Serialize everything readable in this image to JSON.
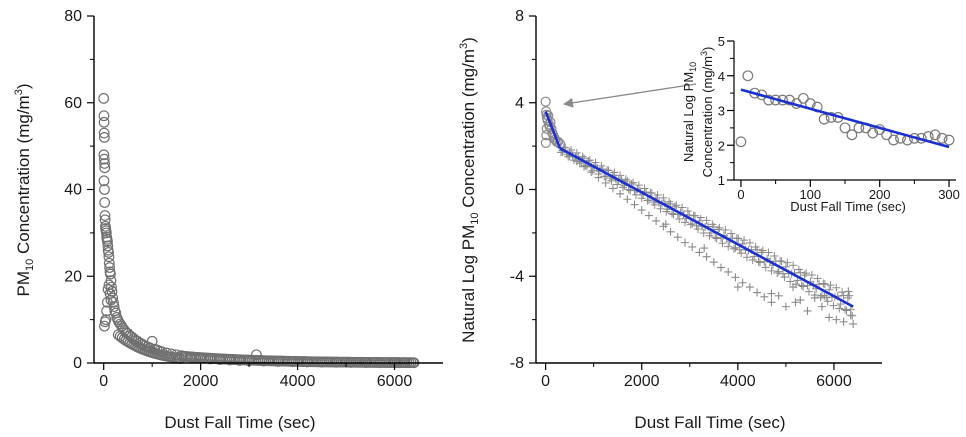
{
  "chart_data": [
    {
      "type": "scatter",
      "panel": "left",
      "xlabel": "Dust Fall Time (sec)",
      "ylabel_main": "PM",
      "ylabel_sub": "10",
      "ylabel_rest": " Concentration (mg/m",
      "ylabel_sup": "3",
      "ylabel_end": ")",
      "xlim": [
        -200,
        7000
      ],
      "ylim": [
        0,
        80
      ],
      "x_ticks": [
        0,
        2000,
        4000,
        6000
      ],
      "y_ticks": [
        0,
        20,
        40,
        60,
        80
      ],
      "x_tick_labels": [
        "0",
        "2000",
        "4000",
        "6000"
      ],
      "y_tick_labels": [
        "0",
        "20",
        "40",
        "60",
        "80"
      ],
      "marker_color": "#707070",
      "series": [
        {
          "points": [
            [
              0,
              61
            ],
            [
              5,
              57
            ],
            [
              8,
              55.5
            ],
            [
              10,
              53
            ],
            [
              14,
              52
            ],
            [
              3,
              48
            ],
            [
              12,
              47
            ],
            [
              18,
              46
            ],
            [
              22,
              45
            ],
            [
              6,
              42
            ],
            [
              16,
              40
            ],
            [
              20,
              37
            ],
            [
              26,
              34
            ],
            [
              30,
              33
            ],
            [
              35,
              31.5
            ],
            [
              40,
              31
            ],
            [
              48,
              30.5
            ],
            [
              55,
              30
            ],
            [
              62,
              29
            ],
            [
              70,
              28.5
            ],
            [
              78,
              28
            ],
            [
              85,
              27
            ],
            [
              92,
              26
            ],
            [
              100,
              25.5
            ],
            [
              108,
              24.5
            ],
            [
              115,
              23
            ],
            [
              122,
              22
            ],
            [
              130,
              21
            ],
            [
              140,
              20.5
            ],
            [
              150,
              19
            ],
            [
              160,
              17.5
            ],
            [
              172,
              16.5
            ],
            [
              185,
              15
            ],
            [
              200,
              14
            ],
            [
              215,
              13
            ],
            [
              230,
              12
            ],
            [
              250,
              11.5
            ],
            [
              270,
              10.5
            ],
            [
              290,
              10
            ],
            [
              15,
              8.5
            ],
            [
              30,
              9.5
            ],
            [
              45,
              10
            ],
            [
              60,
              12
            ],
            [
              75,
              14
            ],
            [
              90,
              17
            ],
            [
              110,
              18
            ],
            [
              130,
              16
            ],
            [
              150,
              14.5
            ],
            [
              310,
              9.5
            ],
            [
              340,
              9
            ],
            [
              370,
              8.5
            ],
            [
              400,
              8
            ],
            [
              430,
              7.5
            ],
            [
              460,
              7
            ],
            [
              500,
              6.8
            ],
            [
              540,
              6.3
            ],
            [
              580,
              6
            ],
            [
              620,
              5.6
            ],
            [
              660,
              5.2
            ],
            [
              700,
              5
            ],
            [
              750,
              4.6
            ],
            [
              800,
              4.3
            ],
            [
              850,
              4
            ],
            [
              900,
              3.7
            ],
            [
              950,
              3.5
            ],
            [
              1000,
              5
            ],
            [
              1050,
              3.2
            ],
            [
              1100,
              3
            ],
            [
              1150,
              2.8
            ],
            [
              1200,
              2.6
            ],
            [
              1300,
              2.3
            ],
            [
              1400,
              2.1
            ],
            [
              1500,
              1.9
            ],
            [
              1600,
              1.7
            ],
            [
              1700,
              1.5
            ],
            [
              1800,
              1.35
            ],
            [
              1900,
              1.2
            ],
            [
              2000,
              1.1
            ],
            [
              2200,
              0.95
            ],
            [
              2400,
              0.8
            ],
            [
              2600,
              0.7
            ],
            [
              2800,
              0.6
            ],
            [
              3000,
              0.5
            ],
            [
              3150,
              1.9
            ],
            [
              3300,
              0.45
            ],
            [
              3600,
              0.35
            ],
            [
              3900,
              0.3
            ],
            [
              4200,
              0.25
            ],
            [
              4500,
              0.2
            ],
            [
              4800,
              0.17
            ],
            [
              5100,
              0.14
            ],
            [
              5400,
              0.12
            ],
            [
              5700,
              0.1
            ],
            [
              6000,
              0.08
            ],
            [
              6200,
              0.07
            ],
            [
              6400,
              0.06
            ]
          ]
        }
      ]
    },
    {
      "type": "scatter",
      "panel": "right",
      "xlabel": "Dust Fall Time (sec)",
      "ylabel_main": "Natural Log PM",
      "ylabel_sub": "10",
      "ylabel_rest": " Concentration (mg/m",
      "ylabel_sup": "3",
      "ylabel_end": ")",
      "xlim": [
        -200,
        7000
      ],
      "ylim": [
        -8,
        8
      ],
      "x_ticks": [
        0,
        2000,
        4000,
        6000
      ],
      "y_ticks": [
        -8,
        -4,
        0,
        4,
        8
      ],
      "x_tick_labels": [
        "0",
        "2000",
        "4000",
        "6000"
      ],
      "y_tick_labels": [
        "-8",
        "-4",
        "0",
        "4",
        "8"
      ],
      "marker_color": "#8a8a8a",
      "line_color": "#1a2fd6",
      "circle_points": [
        [
          0,
          4.05
        ],
        [
          10,
          3.6
        ],
        [
          20,
          3.45
        ],
        [
          30,
          3.3
        ],
        [
          40,
          3.2
        ],
        [
          55,
          3.4
        ],
        [
          70,
          3.0
        ],
        [
          85,
          2.9
        ],
        [
          100,
          3.1
        ],
        [
          120,
          2.8
        ],
        [
          140,
          2.6
        ],
        [
          160,
          2.5
        ],
        [
          180,
          2.4
        ],
        [
          200,
          2.3
        ],
        [
          230,
          2.2
        ],
        [
          260,
          2.2
        ],
        [
          300,
          2.1
        ],
        [
          5,
          2.15
        ],
        [
          15,
          2.5
        ],
        [
          25,
          2.8
        ]
      ],
      "plus_points": [
        [
          350,
          1.8
        ],
        [
          500,
          1.55
        ],
        [
          650,
          1.3
        ],
        [
          800,
          1.05
        ],
        [
          950,
          0.8
        ],
        [
          1100,
          0.55
        ],
        [
          1250,
          0.3
        ],
        [
          1400,
          0.05
        ],
        [
          1550,
          -0.2
        ],
        [
          1700,
          -0.45
        ],
        [
          1850,
          -0.7
        ],
        [
          2000,
          -0.95
        ],
        [
          2150,
          -1.2
        ],
        [
          2300,
          -1.45
        ],
        [
          2450,
          -1.7
        ],
        [
          2600,
          -1.95
        ],
        [
          2750,
          -2.2
        ],
        [
          2900,
          -2.45
        ],
        [
          3050,
          -2.65
        ],
        [
          3200,
          -2.9
        ],
        [
          3350,
          -3.1
        ],
        [
          3500,
          -3.35
        ],
        [
          3650,
          -3.6
        ],
        [
          3800,
          -3.8
        ],
        [
          3950,
          -4.05
        ],
        [
          4100,
          -4.3
        ],
        [
          4250,
          -4.5
        ],
        [
          4400,
          -4.75
        ],
        [
          4550,
          -4.95
        ],
        [
          4700,
          -5.2
        ],
        [
          4850,
          -4.9
        ],
        [
          5000,
          -5.4
        ],
        [
          5150,
          -4.5
        ],
        [
          5300,
          -5.1
        ],
        [
          5450,
          -5.6
        ],
        [
          5600,
          -5.0
        ],
        [
          5750,
          -5.4
        ],
        [
          5900,
          -5.9
        ],
        [
          6050,
          -6.0
        ],
        [
          6200,
          -6.1
        ],
        [
          6300,
          -4.7
        ],
        [
          6350,
          -5.8
        ],
        [
          6400,
          -6.2
        ],
        [
          2500,
          -1.6
        ],
        [
          3300,
          -2.7
        ],
        [
          4000,
          -4.5
        ],
        [
          4700,
          -4.8
        ],
        [
          5200,
          -5.2
        ],
        [
          5800,
          -4.9
        ]
      ],
      "fit_lines": [
        {
          "x": [
            0,
            300
          ],
          "y": [
            3.6,
            1.9
          ]
        },
        {
          "x": [
            300,
            6400
          ],
          "y": [
            1.9,
            -5.4
          ]
        }
      ]
    },
    {
      "type": "scatter",
      "panel": "inset",
      "xlabel": "Dust Fall Time (sec)",
      "ylabel_line1_main": "Natural Log PM",
      "ylabel_line1_sub": "10",
      "ylabel_line2": "Concentration (mg/m",
      "ylabel_line2_sup": "3",
      "ylabel_line2_end": ")",
      "xlim": [
        -10,
        310
      ],
      "ylim": [
        1,
        5
      ],
      "x_ticks": [
        0,
        100,
        200,
        300
      ],
      "y_ticks": [
        1,
        2,
        3,
        4,
        5
      ],
      "x_tick_labels": [
        "0",
        "100",
        "200",
        "300"
      ],
      "y_tick_labels": [
        "1",
        "2",
        "3",
        "4",
        "5"
      ],
      "marker_color": "#7a7a7a",
      "line_color": "#1a2fd6",
      "points": [
        [
          0,
          2.1
        ],
        [
          10,
          4.0
        ],
        [
          20,
          3.5
        ],
        [
          30,
          3.45
        ],
        [
          40,
          3.3
        ],
        [
          50,
          3.3
        ],
        [
          60,
          3.3
        ],
        [
          70,
          3.3
        ],
        [
          80,
          3.2
        ],
        [
          90,
          3.35
        ],
        [
          100,
          3.2
        ],
        [
          110,
          3.1
        ],
        [
          120,
          2.75
        ],
        [
          130,
          2.8
        ],
        [
          140,
          2.8
        ],
        [
          150,
          2.5
        ],
        [
          160,
          2.3
        ],
        [
          170,
          2.5
        ],
        [
          180,
          2.5
        ],
        [
          190,
          2.35
        ],
        [
          200,
          2.45
        ],
        [
          210,
          2.3
        ],
        [
          220,
          2.15
        ],
        [
          230,
          2.2
        ],
        [
          240,
          2.15
        ],
        [
          250,
          2.2
        ],
        [
          260,
          2.2
        ],
        [
          270,
          2.25
        ],
        [
          280,
          2.3
        ],
        [
          290,
          2.2
        ],
        [
          300,
          2.15
        ]
      ],
      "fit_line": {
        "x": [
          0,
          300
        ],
        "y": [
          3.6,
          1.95
        ]
      }
    }
  ]
}
